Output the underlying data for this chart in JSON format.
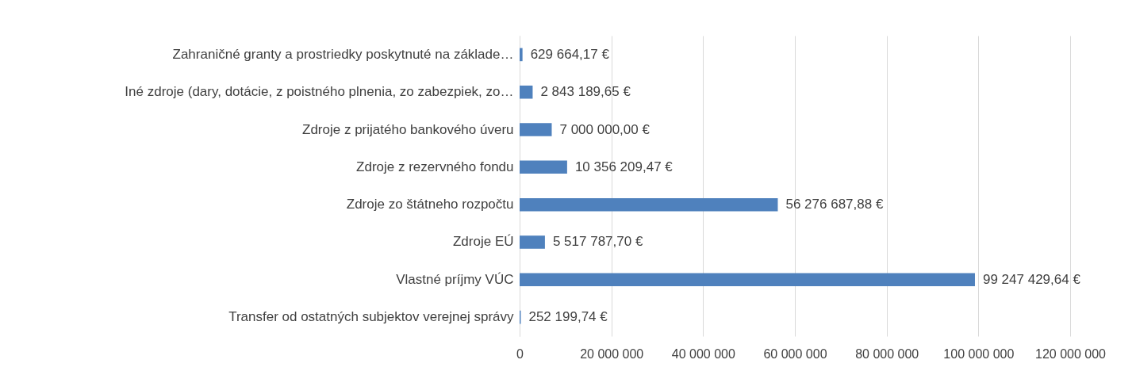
{
  "chart_data": {
    "type": "bar",
    "orientation": "horizontal",
    "categories": [
      "Zahraničné granty a prostriedky poskytnuté na základe…",
      "Iné zdroje (dary, dotácie, z poistného plnenia, zo zabezpiek, zo…",
      "Zdroje z prijatého bankového úveru",
      "Zdroje z rezervného fondu",
      "Zdroje zo štátneho rozpočtu",
      "Zdroje EÚ",
      "Vlastné príjmy VÚC",
      "Transfer od ostatných subjektov verejnej správy"
    ],
    "values": [
      629664.17,
      2843189.65,
      7000000.0,
      10356209.47,
      56276687.88,
      5517787.7,
      99247429.64,
      252199.74
    ],
    "value_labels": [
      "629 664,17 €",
      "2 843 189,65 €",
      "7 000 000,00 €",
      "10 356 209,47 €",
      "56 276 687,88 €",
      "5 517 787,70 €",
      "99 247 429,64 €",
      "252 199,74 €"
    ],
    "color": "#4f81bd",
    "xlim": [
      0,
      120000000
    ],
    "xticks": [
      0,
      {
        "value": 20000000,
        "label": "20 000 000"
      },
      {
        "value": 40000000,
        "label": "40 000 000"
      },
      {
        "value": 60000000,
        "label": "60 000 000"
      },
      {
        "value": 80000000,
        "label": "80 000 000"
      },
      {
        "value": 100000000,
        "label": "100 000 000"
      },
      {
        "value": 120000000,
        "label": "120 000 000"
      }
    ],
    "grid": "x"
  }
}
